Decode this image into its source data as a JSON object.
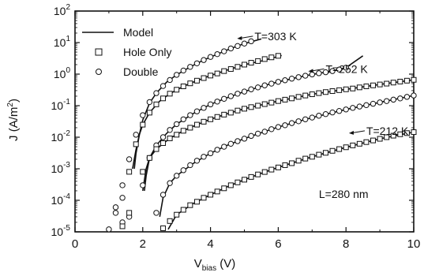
{
  "chart_data": {
    "type": "line",
    "title": "",
    "xlabel": {
      "main": "V",
      "sub": "bias",
      "unit": " (V)"
    },
    "ylabel": "J (A/m",
    "ylabel_sup": "2",
    "ylabel_close": ")",
    "xlim": [
      0,
      10
    ],
    "ylim_log10": [
      -5,
      2
    ],
    "y_scale": "log",
    "x_ticks": [
      0,
      2,
      4,
      6,
      8,
      10
    ],
    "y_ticks": [
      {
        "base": "10",
        "exp": "2"
      },
      {
        "base": "10",
        "exp": "1"
      },
      {
        "base": "10",
        "exp": "0"
      },
      {
        "base": "10",
        "exp": "-1"
      },
      {
        "base": "10",
        "exp": "-2"
      },
      {
        "base": "10",
        "exp": "-3"
      },
      {
        "base": "10",
        "exp": "-4"
      },
      {
        "base": "10",
        "exp": "-5"
      }
    ],
    "grid": false,
    "legend": {
      "placement": "top-left",
      "entries": [
        {
          "label": "Model",
          "marker": "line"
        },
        {
          "label": "Hole Only",
          "marker": "square"
        },
        {
          "label": "Double",
          "marker": "circle"
        }
      ]
    },
    "annotations": [
      {
        "text": "T=303 K",
        "x": 5.3,
        "y": 12.0
      },
      {
        "text": "T=252 K",
        "x": 7.4,
        "y": 1.1
      },
      {
        "text": "T=212 K",
        "x": 8.6,
        "y": 0.012
      },
      {
        "text": "L=280 nm",
        "x": 7.2,
        "y": 0.00012
      }
    ],
    "series": [
      {
        "temperature": "303 K",
        "kind": "Double",
        "marker": "circle",
        "x": [
          1.0,
          1.2,
          1.4,
          1.6,
          1.8,
          2.0,
          2.2,
          2.4,
          2.6,
          2.8,
          3.0,
          3.2,
          3.4,
          3.6,
          3.8,
          4.0,
          4.2,
          4.4,
          4.6,
          4.8,
          5.0,
          5.2
        ],
        "y": [
          1.2e-05,
          6e-05,
          0.0003,
          0.002,
          0.012,
          0.05,
          0.13,
          0.25,
          0.42,
          0.65,
          0.95,
          1.3,
          1.7,
          2.2,
          2.8,
          3.5,
          4.3,
          5.3,
          6.5,
          7.8,
          9.3,
          11.0
        ]
      },
      {
        "temperature": "303 K",
        "kind": "Hole Only",
        "marker": "square",
        "x": [
          1.6,
          1.8,
          2.0,
          2.2,
          2.4,
          2.6,
          2.8,
          3.0,
          3.2,
          3.4,
          3.6,
          3.8,
          4.0,
          4.2,
          4.4,
          4.6,
          4.8,
          5.0,
          5.2,
          5.4,
          5.6,
          5.8,
          6.0
        ],
        "y": [
          0.0008,
          0.006,
          0.025,
          0.06,
          0.11,
          0.17,
          0.24,
          0.32,
          0.41,
          0.51,
          0.62,
          0.75,
          0.9,
          1.05,
          1.25,
          1.45,
          1.7,
          2.0,
          2.3,
          2.6,
          3.0,
          3.4,
          3.8
        ]
      },
      {
        "temperature": "252 K",
        "kind": "Double",
        "marker": "circle",
        "x": [
          1.2,
          1.4,
          1.6,
          2.0,
          2.2,
          2.4,
          2.6,
          2.8,
          3.0,
          3.2,
          3.4,
          3.6,
          3.8,
          4.0,
          4.2,
          4.4,
          4.6,
          4.8,
          5.0,
          5.2,
          5.4,
          5.6,
          5.8,
          6.0,
          6.2,
          6.4,
          6.6,
          6.8,
          7.0,
          7.2,
          7.4,
          7.6,
          7.8,
          8.0
        ],
        "y": [
          4e-05,
          0.00012,
          3e-05,
          0.0003,
          0.0022,
          0.0055,
          0.01,
          0.017,
          0.026,
          0.037,
          0.05,
          0.066,
          0.085,
          0.11,
          0.135,
          0.165,
          0.2,
          0.24,
          0.28,
          0.33,
          0.38,
          0.44,
          0.5,
          0.57,
          0.64,
          0.72,
          0.8,
          0.89,
          0.98,
          1.07,
          1.15,
          1.25,
          1.4,
          1.6
        ]
      },
      {
        "temperature": "252 K",
        "kind": "Hole Only",
        "marker": "square",
        "x": [
          1.6,
          2.0,
          2.2,
          2.4,
          2.6,
          2.8,
          3.0,
          3.2,
          3.4,
          3.6,
          3.8,
          4.0,
          4.2,
          4.4,
          4.6,
          4.8,
          5.0,
          5.2,
          5.4,
          5.6,
          5.8,
          6.0,
          6.2,
          6.4,
          6.6,
          6.8,
          7.0,
          7.2,
          7.4,
          7.6,
          7.8,
          8.0,
          8.2,
          8.4,
          8.6,
          8.8,
          9.0,
          9.2,
          9.4,
          9.6,
          9.8,
          10.0
        ],
        "y": [
          4e-05,
          0.0008,
          0.0022,
          0.0042,
          0.0065,
          0.0092,
          0.012,
          0.016,
          0.02,
          0.025,
          0.031,
          0.037,
          0.044,
          0.052,
          0.06,
          0.07,
          0.08,
          0.09,
          0.1,
          0.112,
          0.125,
          0.14,
          0.155,
          0.17,
          0.19,
          0.21,
          0.23,
          0.25,
          0.27,
          0.29,
          0.31,
          0.33,
          0.35,
          0.38,
          0.41,
          0.44,
          0.47,
          0.5,
          0.54,
          0.58,
          0.62,
          0.66
        ]
      },
      {
        "temperature": "212 K",
        "kind": "Double",
        "marker": "circle",
        "x": [
          1.4,
          2.4,
          2.6,
          2.8,
          3.0,
          3.2,
          3.4,
          3.6,
          3.8,
          4.0,
          4.2,
          4.4,
          4.6,
          4.8,
          5.0,
          5.2,
          5.4,
          5.6,
          5.8,
          6.0,
          6.2,
          6.4,
          6.6,
          6.8,
          7.0,
          7.2,
          7.4,
          7.6,
          7.8,
          8.0,
          8.2,
          8.4,
          8.6,
          8.8,
          9.0,
          9.2,
          9.4,
          9.6,
          9.8,
          10.0
        ],
        "y": [
          2e-05,
          4e-05,
          0.00015,
          0.00035,
          0.0006,
          0.0009,
          0.0013,
          0.0018,
          0.0024,
          0.0031,
          0.004,
          0.005,
          0.0062,
          0.0075,
          0.009,
          0.011,
          0.013,
          0.015,
          0.018,
          0.021,
          0.024,
          0.028,
          0.032,
          0.037,
          0.042,
          0.048,
          0.054,
          0.061,
          0.068,
          0.076,
          0.085,
          0.094,
          0.104,
          0.115,
          0.127,
          0.14,
          0.155,
          0.17,
          0.19,
          0.21
        ]
      },
      {
        "temperature": "212 K",
        "kind": "Hole Only",
        "marker": "square",
        "x": [
          1.4,
          2.6,
          2.8,
          3.0,
          3.2,
          3.4,
          3.6,
          3.8,
          4.0,
          4.2,
          4.4,
          4.6,
          4.8,
          5.0,
          5.2,
          5.4,
          5.6,
          5.8,
          6.0,
          6.2,
          6.4,
          6.6,
          6.8,
          7.0,
          7.2,
          7.4,
          7.6,
          7.8,
          8.0,
          8.2,
          8.4,
          8.6,
          8.8,
          9.0,
          9.2,
          9.4,
          9.6,
          9.8,
          10.0
        ],
        "y": [
          1.5e-05,
          1.3e-05,
          2.2e-05,
          3.5e-05,
          5e-05,
          7e-05,
          9e-05,
          0.00012,
          0.00015,
          0.00019,
          0.00024,
          0.0003,
          0.00037,
          0.00045,
          0.00055,
          0.00066,
          0.00079,
          0.00094,
          0.0011,
          0.0013,
          0.0015,
          0.0018,
          0.0021,
          0.0024,
          0.0028,
          0.0032,
          0.0037,
          0.0042,
          0.0048,
          0.0055,
          0.0062,
          0.007,
          0.0079,
          0.0089,
          0.01,
          0.0112,
          0.0124,
          0.0135,
          0.0145
        ]
      }
    ],
    "model_curves": [
      {
        "temperature": "303 K",
        "fit_of": "Double",
        "x": [
          1.75,
          1.8,
          1.9,
          2.0,
          2.2,
          2.4,
          2.7,
          3.0,
          3.4,
          3.8,
          4.2,
          4.6,
          5.0,
          5.5
        ],
        "y": [
          0.001,
          0.003,
          0.012,
          0.035,
          0.12,
          0.25,
          0.55,
          0.95,
          1.7,
          2.8,
          4.3,
          6.5,
          9.3,
          13.0
        ]
      },
      {
        "temperature": "303 K",
        "fit_of": "Hole Only",
        "x": [
          1.7,
          1.8,
          1.9,
          2.0,
          2.2,
          2.5,
          2.8,
          3.2,
          3.6,
          4.0,
          4.5,
          5.0,
          5.5,
          6.1
        ],
        "y": [
          0.001,
          0.004,
          0.012,
          0.025,
          0.06,
          0.14,
          0.24,
          0.41,
          0.62,
          0.9,
          1.35,
          2.0,
          2.6,
          3.9
        ]
      },
      {
        "temperature": "252 K",
        "fit_of": "Double",
        "x": [
          2.05,
          2.1,
          2.2,
          2.4,
          2.7,
          3.0,
          3.5,
          4.0,
          4.5,
          5.0,
          5.5,
          6.0,
          6.5,
          7.0,
          7.5,
          8.0,
          8.5
        ],
        "y": [
          0.0002,
          0.0006,
          0.0022,
          0.0055,
          0.013,
          0.026,
          0.057,
          0.11,
          0.18,
          0.28,
          0.41,
          0.57,
          0.76,
          0.98,
          1.2,
          1.6,
          3.8
        ]
      },
      {
        "temperature": "252 K",
        "fit_of": "Hole Only",
        "x": [
          2.0,
          2.1,
          2.2,
          2.4,
          2.8,
          3.2,
          3.6,
          4.0,
          4.5,
          5.0,
          5.5,
          6.0,
          7.0,
          8.0,
          9.0,
          10.0
        ],
        "y": [
          0.0002,
          0.001,
          0.0022,
          0.0042,
          0.0092,
          0.016,
          0.025,
          0.037,
          0.056,
          0.08,
          0.106,
          0.14,
          0.23,
          0.33,
          0.47,
          0.66
        ]
      },
      {
        "temperature": "212 K",
        "fit_of": "Double",
        "x": [
          2.5,
          2.6,
          2.8,
          3.0,
          3.5,
          4.0,
          4.5,
          5.0,
          5.5,
          6.0,
          7.0,
          8.0,
          9.0,
          10.0
        ],
        "y": [
          3e-05,
          0.00012,
          0.00035,
          0.0006,
          0.0015,
          0.0031,
          0.0056,
          0.009,
          0.014,
          0.021,
          0.042,
          0.076,
          0.127,
          0.21
        ]
      },
      {
        "temperature": "212 K",
        "fit_of": "Hole Only",
        "x": [
          2.75,
          3.0,
          3.5,
          4.0,
          4.5,
          5.0,
          5.5,
          6.0,
          7.0,
          8.0,
          9.0,
          10.0
        ],
        "y": [
          1.2e-05,
          3.5e-05,
          8e-05,
          0.00015,
          0.00027,
          0.00045,
          0.00072,
          0.0011,
          0.0024,
          0.0048,
          0.0089,
          0.0145
        ]
      }
    ]
  }
}
